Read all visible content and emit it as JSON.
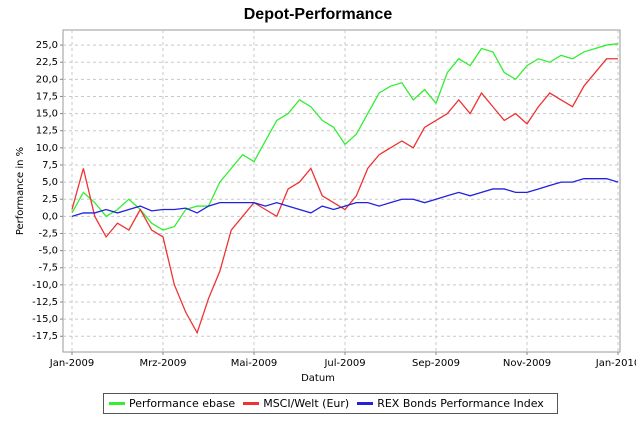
{
  "chart_data": {
    "type": "line",
    "title": "Depot-Performance",
    "x_label": "Datum",
    "y_label": "Performance in %",
    "categories": [
      "Jan-2009",
      null,
      null,
      null,
      null,
      null,
      null,
      null,
      "Mrz-2009",
      null,
      null,
      null,
      null,
      null,
      null,
      null,
      "Mai-2009",
      null,
      null,
      null,
      null,
      null,
      null,
      null,
      "Jul-2009",
      null,
      null,
      null,
      null,
      null,
      null,
      null,
      "Sep-2009",
      null,
      null,
      null,
      null,
      null,
      null,
      null,
      "Nov-2009",
      null,
      null,
      null,
      null,
      null,
      null,
      null,
      "Jan-2010"
    ],
    "series": [
      {
        "name": "Performance ebase",
        "color": "#33ee33",
        "values": [
          0.5,
          3.5,
          2,
          0,
          1,
          2.5,
          1,
          -1,
          -2,
          -1.5,
          1,
          1.5,
          1.5,
          5,
          7,
          9,
          8,
          11,
          14,
          15,
          17,
          16,
          14,
          13,
          10.5,
          12,
          15,
          18,
          19,
          19.5,
          17,
          18.5,
          16.5,
          21,
          23,
          22,
          24.5,
          24,
          21,
          20,
          22,
          23,
          22.5,
          23.5,
          23,
          24,
          24.5,
          25,
          25.2
        ]
      },
      {
        "name": "MSCI/Welt (Eur)",
        "color": "#ee3333",
        "values": [
          1,
          7,
          0,
          -3,
          -1,
          -2,
          1,
          -2,
          -3,
          -10,
          -14,
          -17,
          -12,
          -8,
          -2,
          0,
          2,
          1,
          0,
          4,
          5,
          7,
          3,
          2,
          1,
          3,
          7,
          9,
          10,
          11,
          10,
          13,
          14,
          15,
          17,
          15,
          18,
          16,
          14,
          15,
          13.5,
          16,
          18,
          17,
          16,
          19,
          21,
          23,
          23
        ]
      },
      {
        "name": "REX Bonds Performance Index",
        "color": "#2222dd",
        "values": [
          0,
          0.5,
          0.5,
          1,
          0.5,
          1,
          1.5,
          0.8,
          1,
          1,
          1.2,
          0.5,
          1.5,
          2,
          2,
          2,
          2,
          1.5,
          2,
          1.5,
          1,
          0.5,
          1.5,
          1,
          1.5,
          2,
          2,
          1.5,
          2,
          2.5,
          2.5,
          2,
          2.5,
          3,
          3.5,
          3,
          3.5,
          4,
          4,
          3.5,
          3.5,
          4,
          4.5,
          5,
          5,
          5.5,
          5.5,
          5.5,
          5
        ]
      }
    ],
    "ylim": [
      -19.8,
      27.2
    ],
    "yticks": [
      {
        "value": -17.5,
        "label": "-17,5"
      },
      {
        "value": -15,
        "label": "-15,0"
      },
      {
        "value": -12.5,
        "label": "-12,5"
      },
      {
        "value": -10,
        "label": "-10,0"
      },
      {
        "value": -7.5,
        "label": "-7,5"
      },
      {
        "value": -5,
        "label": "-5,0"
      },
      {
        "value": -2.5,
        "label": "-2,5"
      },
      {
        "value": 0,
        "label": "0,0"
      },
      {
        "value": 2.5,
        "label": "2,5"
      },
      {
        "value": 5,
        "label": "5,0"
      },
      {
        "value": 7.5,
        "label": "7,5"
      },
      {
        "value": 10,
        "label": "10,0"
      },
      {
        "value": 12.5,
        "label": "12,5"
      },
      {
        "value": 15,
        "label": "15,0"
      },
      {
        "value": 17.5,
        "label": "17,5"
      },
      {
        "value": 20,
        "label": "20,0"
      },
      {
        "value": 22.5,
        "label": "22,5"
      },
      {
        "value": 25,
        "label": "25,0"
      }
    ],
    "grid": true,
    "legend": "bottom"
  }
}
